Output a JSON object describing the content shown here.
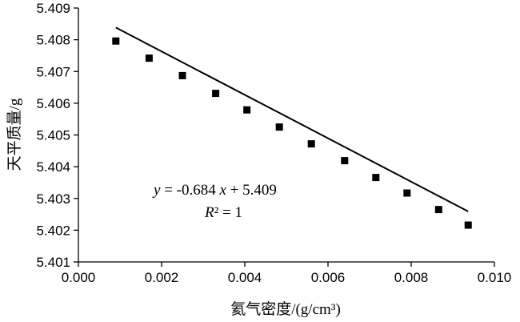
{
  "chart_data": {
    "type": "scatter",
    "xlabel": "氦气密度/(g/cm³)",
    "ylabel": "天平质量/g",
    "xlim": [
      0.0,
      0.01
    ],
    "ylim": [
      5.401,
      5.409
    ],
    "x_ticks": [
      "0.000",
      "0.002",
      "0.004",
      "0.006",
      "0.008",
      "0.010"
    ],
    "y_ticks": [
      "5.401",
      "5.402",
      "5.403",
      "5.404",
      "5.405",
      "5.406",
      "5.407",
      "5.408",
      "5.409"
    ],
    "grid": false,
    "series": [
      {
        "x": [
          0.0009,
          0.0017,
          0.0025,
          0.0033,
          0.00405,
          0.00483,
          0.0056,
          0.0064,
          0.00715,
          0.0079,
          0.00866,
          0.00937
        ],
        "y": [
          5.40796,
          5.40742,
          5.40687,
          5.40631,
          5.40579,
          5.40525,
          5.40472,
          5.40419,
          5.40366,
          5.40317,
          5.40265,
          5.40216
        ],
        "marker": "square",
        "color": "#000000"
      }
    ],
    "trendline": {
      "slope": -0.684,
      "intercept": 5.409,
      "color": "#000000"
    },
    "annotation": {
      "eq_y": "y",
      "eq_mid": " = -0.684 ",
      "eq_x": "x",
      "eq_end": " + 5.409",
      "r2_R": "R",
      "r2_rest": "² = 1"
    }
  }
}
